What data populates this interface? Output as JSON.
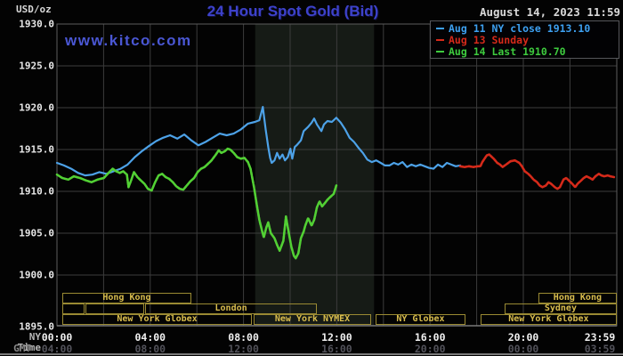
{
  "header": {
    "units": "USD/oz",
    "title": "24 Hour Spot Gold (Bid)",
    "datetime": "August 14, 2023 11:59",
    "watermark": "www.kitco.com"
  },
  "legend": {
    "items": [
      {
        "label": "Aug 11 NY close 1913.10",
        "color": "#3da0f0"
      },
      {
        "label": "Aug 13 Sunday",
        "color": "#d62a1a"
      },
      {
        "label": "Aug 14 Last 1910.70",
        "color": "#3ecb3e"
      }
    ]
  },
  "axes": {
    "ny_label": "NY Time",
    "gmt_label": "GMT",
    "tick_hours": [
      0,
      4,
      8,
      12,
      16,
      20,
      23.983
    ],
    "ny_times": [
      "00:00",
      "04:00",
      "08:00",
      "12:00",
      "16:00",
      "20:00",
      "23:59"
    ],
    "gmt_times": [
      "04:00",
      "08:00",
      "12:00",
      "16:00",
      "20:00",
      "00:00",
      "03:59"
    ],
    "y_tick_values": [
      1930,
      1925,
      1920,
      1915,
      1910,
      1905,
      1900,
      1895
    ],
    "y_tick_labels": [
      "1930.0",
      "1925.0",
      "1920.0",
      "1915.0",
      "1910.0",
      "1905.0",
      "1900.0",
      "1895.0"
    ]
  },
  "sessions": [
    {
      "row": 1,
      "label": "Hong Kong",
      "t1": 0.23,
      "t2": 5.76
    },
    {
      "row": 1,
      "label": "Hong Kong",
      "t1": 20.65,
      "t2": 24.0
    },
    {
      "row": 2,
      "label": "",
      "t1": 0.23,
      "t2": 1.18
    },
    {
      "row": 2,
      "label": "",
      "t1": 1.22,
      "t2": 3.74
    },
    {
      "row": 2,
      "label": "London",
      "t1": 3.78,
      "t2": 11.15
    },
    {
      "row": 2,
      "label": "Sydney",
      "t1": 19.2,
      "t2": 24.0
    },
    {
      "row": 3,
      "label": "New York Globex",
      "t1": 0.23,
      "t2": 8.36
    },
    {
      "row": 3,
      "label": "New York NYMEX",
      "t1": 8.44,
      "t2": 13.47
    },
    {
      "row": 3,
      "label": "NY Globex",
      "t1": 13.66,
      "t2": 17.52
    },
    {
      "row": 3,
      "label": "New York Globex",
      "t1": 18.17,
      "t2": 24.0
    }
  ],
  "colors": {
    "grid": "#3c3c3c",
    "plot_border": "#5c5c5c",
    "axis_baseline": "#7a7a7a",
    "band": "#161b16",
    "blue_line": "#4da2e8",
    "green_line": "#52d034",
    "red_line": "#d62a1a",
    "ny_tick_text": "#f0f0f0",
    "gmt_tick_text": "#52525a",
    "ny_row_label": "#b8b8b8",
    "gmt_row_label": "#8a8a8a"
  },
  "chart_data": {
    "type": "line",
    "title": "24 Hour Spot Gold (Bid)",
    "xlabel": "NY Time (hours)",
    "ylabel": "USD/oz",
    "x_range_hours": [
      0,
      24
    ],
    "y_range": [
      1895,
      1930
    ],
    "grid": true,
    "legend_position": "top-right",
    "highlight_band_hours": {
      "start": 8.5,
      "end": 13.6
    },
    "series": [
      {
        "name": "Aug 11 NY close 1913.10",
        "color": "#4da2e8",
        "points": [
          [
            0,
            1913.4
          ],
          [
            0.3,
            1913.1
          ],
          [
            0.61,
            1912.7
          ],
          [
            0.91,
            1912.2
          ],
          [
            1.21,
            1911.9
          ],
          [
            1.52,
            1912.0
          ],
          [
            1.82,
            1912.3
          ],
          [
            2.12,
            1912.1
          ],
          [
            2.43,
            1912.4
          ],
          [
            2.73,
            1912.7
          ],
          [
            3.03,
            1913.2
          ],
          [
            3.34,
            1914.1
          ],
          [
            3.64,
            1914.8
          ],
          [
            3.94,
            1915.4
          ],
          [
            4.25,
            1916.0
          ],
          [
            4.55,
            1916.4
          ],
          [
            4.85,
            1916.7
          ],
          [
            5.16,
            1916.3
          ],
          [
            5.46,
            1916.8
          ],
          [
            5.76,
            1916.1
          ],
          [
            6.07,
            1915.5
          ],
          [
            6.37,
            1915.9
          ],
          [
            6.67,
            1916.4
          ],
          [
            6.98,
            1916.9
          ],
          [
            7.28,
            1916.7
          ],
          [
            7.58,
            1916.9
          ],
          [
            7.89,
            1917.4
          ],
          [
            8.19,
            1918.1
          ],
          [
            8.49,
            1918.3
          ],
          [
            8.68,
            1918.5
          ],
          [
            8.83,
            1920.1
          ],
          [
            8.95,
            1917.4
          ],
          [
            9.06,
            1915.3
          ],
          [
            9.14,
            1914.0
          ],
          [
            9.21,
            1913.4
          ],
          [
            9.33,
            1913.7
          ],
          [
            9.44,
            1914.6
          ],
          [
            9.55,
            1913.9
          ],
          [
            9.67,
            1914.4
          ],
          [
            9.78,
            1913.7
          ],
          [
            9.9,
            1914.1
          ],
          [
            10.01,
            1915.1
          ],
          [
            10.09,
            1913.9
          ],
          [
            10.2,
            1915.3
          ],
          [
            10.31,
            1915.6
          ],
          [
            10.46,
            1916.1
          ],
          [
            10.58,
            1917.2
          ],
          [
            10.77,
            1917.7
          ],
          [
            10.92,
            1918.2
          ],
          [
            11.03,
            1918.7
          ],
          [
            11.15,
            1918.0
          ],
          [
            11.34,
            1917.2
          ],
          [
            11.45,
            1918.0
          ],
          [
            11.6,
            1918.4
          ],
          [
            11.79,
            1918.3
          ],
          [
            11.98,
            1918.8
          ],
          [
            12.17,
            1918.2
          ],
          [
            12.36,
            1917.4
          ],
          [
            12.55,
            1916.4
          ],
          [
            12.74,
            1915.9
          ],
          [
            12.93,
            1915.2
          ],
          [
            13.12,
            1914.6
          ],
          [
            13.31,
            1913.8
          ],
          [
            13.5,
            1913.5
          ],
          [
            13.69,
            1913.7
          ],
          [
            13.88,
            1913.4
          ],
          [
            14.07,
            1913.1
          ],
          [
            14.26,
            1913.1
          ],
          [
            14.45,
            1913.4
          ],
          [
            14.63,
            1913.2
          ],
          [
            14.82,
            1913.5
          ],
          [
            15.01,
            1912.9
          ],
          [
            15.2,
            1913.2
          ],
          [
            15.39,
            1913.0
          ],
          [
            15.58,
            1913.2
          ],
          [
            15.77,
            1913.0
          ],
          [
            15.96,
            1912.8
          ],
          [
            16.15,
            1912.7
          ],
          [
            16.34,
            1913.2
          ],
          [
            16.53,
            1912.9
          ],
          [
            16.72,
            1913.4
          ],
          [
            16.91,
            1913.2
          ],
          [
            17.1,
            1913.0
          ],
          [
            17.29,
            1913.1
          ]
        ]
      },
      {
        "name": "Aug 13 Sunday",
        "color": "#d62a1a",
        "points": [
          [
            17.29,
            1913.0
          ],
          [
            17.48,
            1912.9
          ],
          [
            17.67,
            1913.0
          ],
          [
            17.86,
            1912.9
          ],
          [
            18.05,
            1913.0
          ],
          [
            18.16,
            1913.0
          ],
          [
            18.24,
            1913.5
          ],
          [
            18.43,
            1914.3
          ],
          [
            18.54,
            1914.4
          ],
          [
            18.73,
            1913.9
          ],
          [
            18.88,
            1913.4
          ],
          [
            19.0,
            1913.2
          ],
          [
            19.11,
            1912.9
          ],
          [
            19.26,
            1913.2
          ],
          [
            19.45,
            1913.6
          ],
          [
            19.64,
            1913.7
          ],
          [
            19.83,
            1913.4
          ],
          [
            19.94,
            1913.0
          ],
          [
            20.06,
            1912.4
          ],
          [
            20.21,
            1912.1
          ],
          [
            20.32,
            1911.8
          ],
          [
            20.44,
            1911.4
          ],
          [
            20.59,
            1911.1
          ],
          [
            20.7,
            1910.7
          ],
          [
            20.82,
            1910.5
          ],
          [
            20.97,
            1910.7
          ],
          [
            21.08,
            1911.1
          ],
          [
            21.19,
            1910.9
          ],
          [
            21.35,
            1910.5
          ],
          [
            21.46,
            1910.3
          ],
          [
            21.57,
            1910.5
          ],
          [
            21.72,
            1911.4
          ],
          [
            21.84,
            1911.6
          ],
          [
            21.95,
            1911.3
          ],
          [
            22.1,
            1910.9
          ],
          [
            22.22,
            1910.5
          ],
          [
            22.33,
            1910.9
          ],
          [
            22.48,
            1911.3
          ],
          [
            22.59,
            1911.6
          ],
          [
            22.71,
            1911.8
          ],
          [
            22.86,
            1911.6
          ],
          [
            22.97,
            1911.4
          ],
          [
            23.09,
            1911.8
          ],
          [
            23.24,
            1912.1
          ],
          [
            23.35,
            1911.9
          ],
          [
            23.47,
            1911.8
          ],
          [
            23.62,
            1911.9
          ],
          [
            23.73,
            1911.8
          ],
          [
            23.89,
            1911.7
          ]
        ]
      },
      {
        "name": "Aug 14 Last 1910.70",
        "color": "#52d034",
        "points": [
          [
            0,
            1912.0
          ],
          [
            0.23,
            1911.6
          ],
          [
            0.49,
            1911.4
          ],
          [
            0.72,
            1911.8
          ],
          [
            0.99,
            1911.6
          ],
          [
            1.25,
            1911.3
          ],
          [
            1.48,
            1911.1
          ],
          [
            1.74,
            1911.4
          ],
          [
            2.01,
            1911.6
          ],
          [
            2.24,
            1912.3
          ],
          [
            2.39,
            1912.7
          ],
          [
            2.54,
            1912.4
          ],
          [
            2.69,
            1912.2
          ],
          [
            2.84,
            1912.4
          ],
          [
            3.0,
            1912.0
          ],
          [
            3.07,
            1910.5
          ],
          [
            3.18,
            1911.3
          ],
          [
            3.3,
            1912.3
          ],
          [
            3.45,
            1911.7
          ],
          [
            3.6,
            1911.3
          ],
          [
            3.75,
            1910.9
          ],
          [
            3.9,
            1910.3
          ],
          [
            4.06,
            1910.1
          ],
          [
            4.21,
            1911.1
          ],
          [
            4.36,
            1911.9
          ],
          [
            4.51,
            1912.1
          ],
          [
            4.66,
            1911.7
          ],
          [
            4.81,
            1911.5
          ],
          [
            4.97,
            1911.1
          ],
          [
            5.12,
            1910.6
          ],
          [
            5.27,
            1910.3
          ],
          [
            5.42,
            1910.2
          ],
          [
            5.57,
            1910.7
          ],
          [
            5.72,
            1911.2
          ],
          [
            5.88,
            1911.6
          ],
          [
            6.03,
            1912.3
          ],
          [
            6.18,
            1912.7
          ],
          [
            6.33,
            1912.9
          ],
          [
            6.48,
            1913.3
          ],
          [
            6.63,
            1913.7
          ],
          [
            6.79,
            1914.3
          ],
          [
            6.94,
            1914.9
          ],
          [
            7.05,
            1914.6
          ],
          [
            7.2,
            1914.8
          ],
          [
            7.32,
            1915.1
          ],
          [
            7.43,
            1915.0
          ],
          [
            7.58,
            1914.6
          ],
          [
            7.73,
            1914.1
          ],
          [
            7.89,
            1913.9
          ],
          [
            8.04,
            1914.0
          ],
          [
            8.19,
            1913.5
          ],
          [
            8.3,
            1912.7
          ],
          [
            8.45,
            1910.5
          ],
          [
            8.57,
            1908.4
          ],
          [
            8.68,
            1906.6
          ],
          [
            8.8,
            1905.2
          ],
          [
            8.87,
            1904.5
          ],
          [
            8.98,
            1905.7
          ],
          [
            9.06,
            1906.3
          ],
          [
            9.17,
            1905.0
          ],
          [
            9.33,
            1904.4
          ],
          [
            9.44,
            1903.6
          ],
          [
            9.55,
            1902.9
          ],
          [
            9.71,
            1904.1
          ],
          [
            9.82,
            1907.0
          ],
          [
            9.93,
            1905.2
          ],
          [
            10.05,
            1903.4
          ],
          [
            10.16,
            1902.3
          ],
          [
            10.24,
            1902.0
          ],
          [
            10.35,
            1902.6
          ],
          [
            10.46,
            1904.4
          ],
          [
            10.58,
            1905.2
          ],
          [
            10.65,
            1905.9
          ],
          [
            10.77,
            1906.8
          ],
          [
            10.92,
            1905.9
          ],
          [
            11.03,
            1906.6
          ],
          [
            11.15,
            1908.1
          ],
          [
            11.26,
            1908.8
          ],
          [
            11.37,
            1908.2
          ],
          [
            11.49,
            1908.6
          ],
          [
            11.6,
            1909.0
          ],
          [
            11.71,
            1909.3
          ],
          [
            11.87,
            1909.7
          ],
          [
            11.98,
            1910.7
          ]
        ]
      }
    ]
  }
}
